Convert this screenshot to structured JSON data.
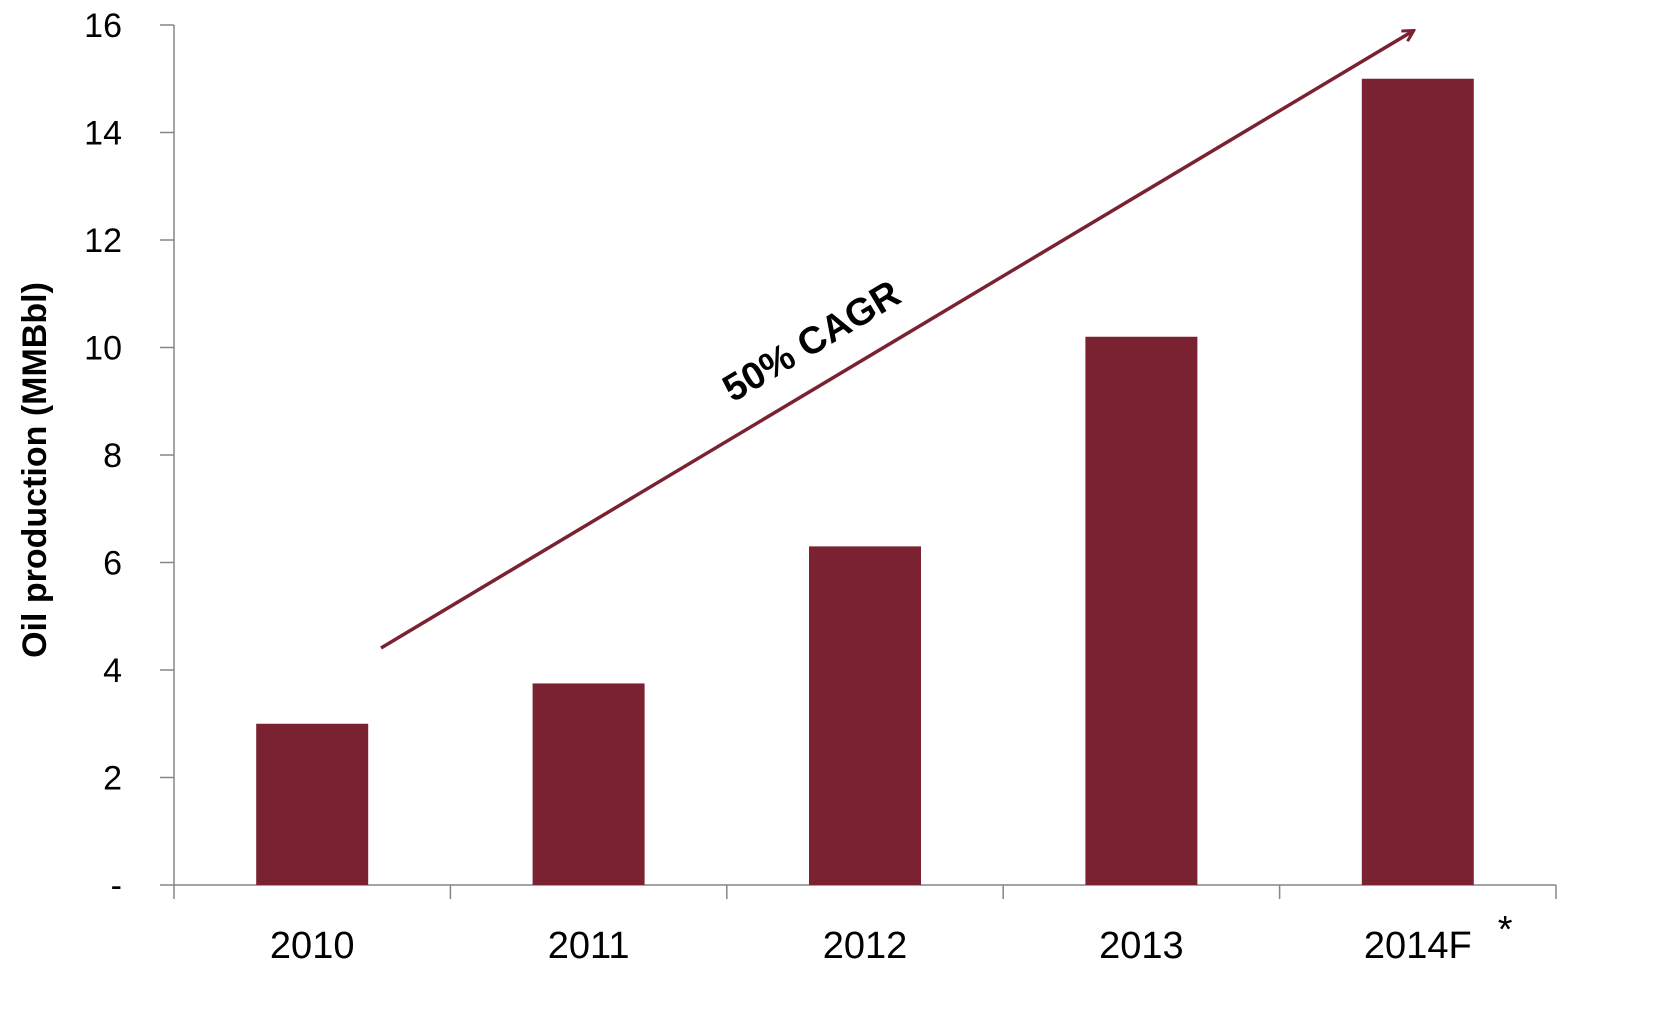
{
  "chart_data": {
    "type": "bar",
    "categories": [
      "2010",
      "2011",
      "2012",
      "2013",
      "2014F"
    ],
    "category_notes": [
      "",
      "",
      "",
      "",
      "*"
    ],
    "values": [
      3.0,
      3.75,
      6.3,
      10.2,
      15.0
    ],
    "ylabel": "Oil production (MMBbl)",
    "xlabel": "",
    "ylim": [
      0,
      16
    ],
    "yticks": [
      0,
      2,
      4,
      6,
      8,
      10,
      12,
      14,
      16
    ],
    "ytick_labels": [
      "-",
      "2",
      "4",
      "6",
      "8",
      "10",
      "12",
      "14",
      "16"
    ],
    "grid": false,
    "legend": "none",
    "bar_color": "#7a2232",
    "annotation": {
      "text": "50% CAGR",
      "arrow_color": "#7a2232"
    }
  }
}
